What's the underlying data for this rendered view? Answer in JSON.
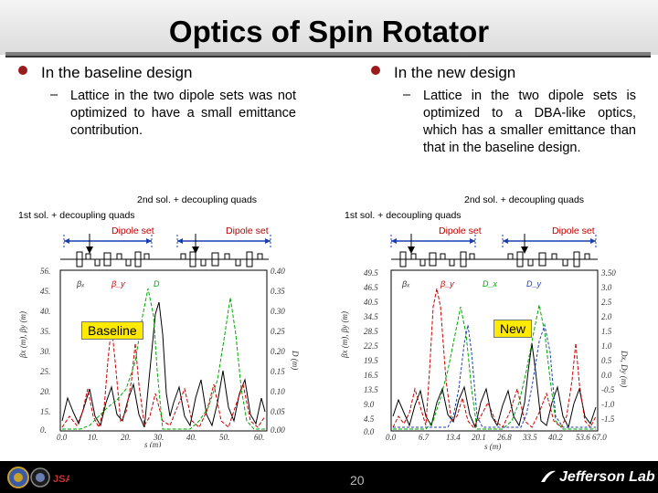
{
  "slide": {
    "title": "Optics of Spin Rotator",
    "page_number": "20",
    "footer_brand": "Jefferson Lab"
  },
  "left": {
    "heading": "In the baseline design",
    "bullet": "Lattice in the two dipole sets was not optimized to have a small emittance contribution.",
    "label_2nd": "2nd sol. + decoupling quads",
    "label_1st": "1st sol. + decoupling quads",
    "dipole1": "Dipole set",
    "dipole2": "Dipole set",
    "badge": "Baseline"
  },
  "right": {
    "heading": "In the new design",
    "bullet": "Lattice in the two dipole sets is optimized to a DBA-like optics, which has a smaller emittance than that in the baseline design.",
    "label_2nd": "2nd sol. + decoupling quads",
    "label_1st": "1st sol. + decoupling quads",
    "dipole1": "Dipole set",
    "dipole2": "Dipole set",
    "badge": "New"
  },
  "colors": {
    "bullet_dot": "#9a1b1b",
    "badge_bg": "#ffea00",
    "beta_x": "#000000",
    "beta_y": "#cc0000",
    "dispersion": "#00aa00"
  }
}
